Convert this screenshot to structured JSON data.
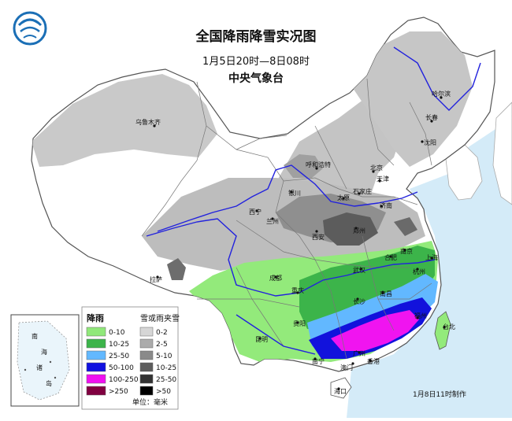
{
  "header": {
    "title": "全国降雨降雪实况图",
    "period": "1月5日20时—8日08时",
    "agency": "中央气象台"
  },
  "footer": {
    "made_at": "1月8日11时制作"
  },
  "inset": {
    "label_chars": [
      "南",
      "海",
      "诸",
      "岛"
    ]
  },
  "legend": {
    "rain": {
      "title": "降雨",
      "items": [
        {
          "label": "0-10",
          "color": "#90e87a"
        },
        {
          "label": "10-25",
          "color": "#3cb44a"
        },
        {
          "label": "25-50",
          "color": "#62b8ff"
        },
        {
          "label": "50-100",
          "color": "#1010e0"
        },
        {
          "label": "100-250",
          "color": "#f010f0"
        },
        {
          "label": ">250",
          "color": "#800040"
        }
      ]
    },
    "snow": {
      "title": "雪或雨夹雪",
      "items": [
        {
          "label": "0-2",
          "color": "#d6d6d6"
        },
        {
          "label": "2-5",
          "color": "#ababab"
        },
        {
          "label": "5-10",
          "color": "#8a8a8a"
        },
        {
          "label": "10-25",
          "color": "#5c5c5c"
        },
        {
          "label": "25-50",
          "color": "#333333"
        },
        {
          "label": ">50",
          "color": "#000000"
        }
      ],
      "unit": "单位：毫米"
    }
  },
  "cities": {
    "urumqi": "乌鲁木齐",
    "harbin": "哈尔滨",
    "changchun": "长春",
    "shenyang": "沈阳",
    "hohhot": "呼和浩特",
    "beijing": "北京",
    "tianjin": "天津",
    "shijiazhuang": "石家庄",
    "taiyuan": "太原",
    "jinan": "济南",
    "yinchuan": "银川",
    "xining": "西宁",
    "lanzhou": "兰州",
    "xian": "西安",
    "zhengzhou": "郑州",
    "hefei": "合肥",
    "nanjing": "南京",
    "shanghai": "上海",
    "hangzhou": "杭州",
    "wuhan": "武汉",
    "lhasa": "拉萨",
    "chengdu": "成都",
    "chongqing": "重庆",
    "changsha": "长沙",
    "nanchang": "南昌",
    "fuzhou": "福州",
    "taibei": "台北",
    "guiyang": "贵阳",
    "kunming": "昆明",
    "nanning": "南宁",
    "guangzhou": "广州",
    "haikou": "海口",
    "xianggang": "香港",
    "aomen": "澳门"
  },
  "colors": {
    "sea": "#cfe9f7",
    "land": "#ffffff",
    "border": "#444444",
    "river": "#2222dd"
  }
}
